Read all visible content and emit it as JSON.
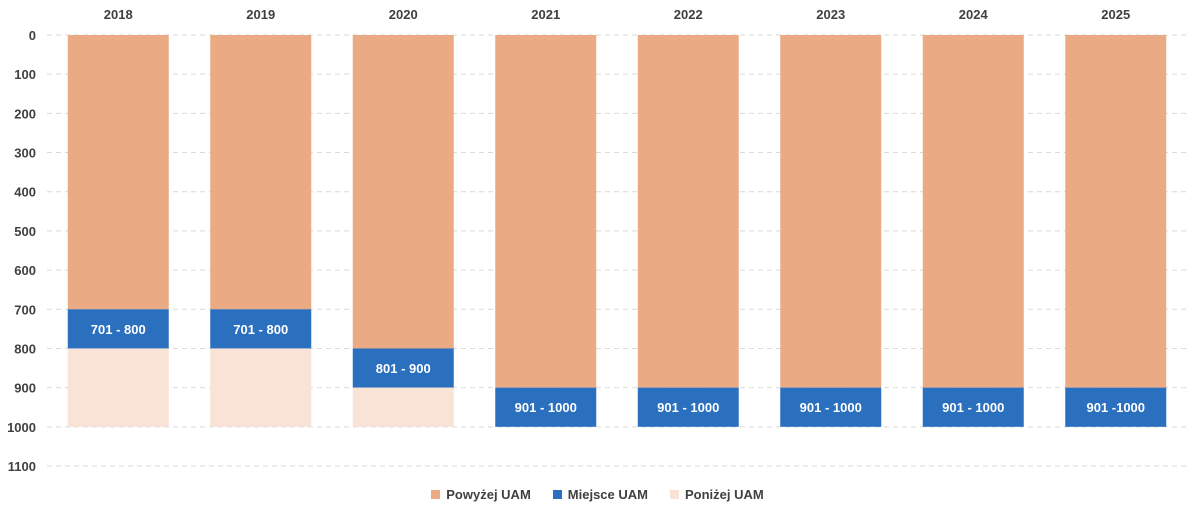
{
  "chart_data": {
    "type": "bar",
    "stacked": true,
    "orientation": "vertical",
    "y_axis_inverted": true,
    "x_axis_position": "top",
    "categories": [
      "2018",
      "2019",
      "2020",
      "2021",
      "2022",
      "2023",
      "2024",
      "2025"
    ],
    "ylim": [
      0,
      1100
    ],
    "yticks": [
      "0",
      "100",
      "200",
      "300",
      "400",
      "500",
      "600",
      "700",
      "800",
      "900",
      "1000",
      "1100"
    ],
    "grid": true,
    "legend_position": "bottom",
    "series": [
      {
        "name": "Powyżej UAM",
        "color": "#EAAA84",
        "ranges": [
          [
            0,
            700
          ],
          [
            0,
            700
          ],
          [
            0,
            800
          ],
          [
            0,
            900
          ],
          [
            0,
            900
          ],
          [
            0,
            900
          ],
          [
            0,
            900
          ],
          [
            0,
            900
          ]
        ]
      },
      {
        "name": "Miejsce UAM",
        "color": "#2B6FBF",
        "ranges": [
          [
            700,
            800
          ],
          [
            700,
            800
          ],
          [
            800,
            900
          ],
          [
            900,
            1000
          ],
          [
            900,
            1000
          ],
          [
            900,
            1000
          ],
          [
            900,
            1000
          ],
          [
            900,
            1000
          ]
        ]
      },
      {
        "name": "Poniżej UAM",
        "color": "#F9E2D6",
        "ranges": [
          [
            800,
            1000
          ],
          [
            800,
            1000
          ],
          [
            900,
            1000
          ],
          null,
          null,
          null,
          null,
          null
        ]
      }
    ],
    "data_labels": [
      "701 - 800",
      "701 - 800",
      "801 - 900",
      "901 - 1000",
      "901 - 1000",
      "901 - 1000",
      "901 - 1000",
      "901 -1000"
    ]
  },
  "legend": {
    "items": [
      {
        "label": "Powyżej UAM",
        "color": "#EAAA84"
      },
      {
        "label": "Miejsce UAM",
        "color": "#2B6FBF"
      },
      {
        "label": "Poniżej UAM",
        "color": "#F9E2D6"
      }
    ]
  }
}
